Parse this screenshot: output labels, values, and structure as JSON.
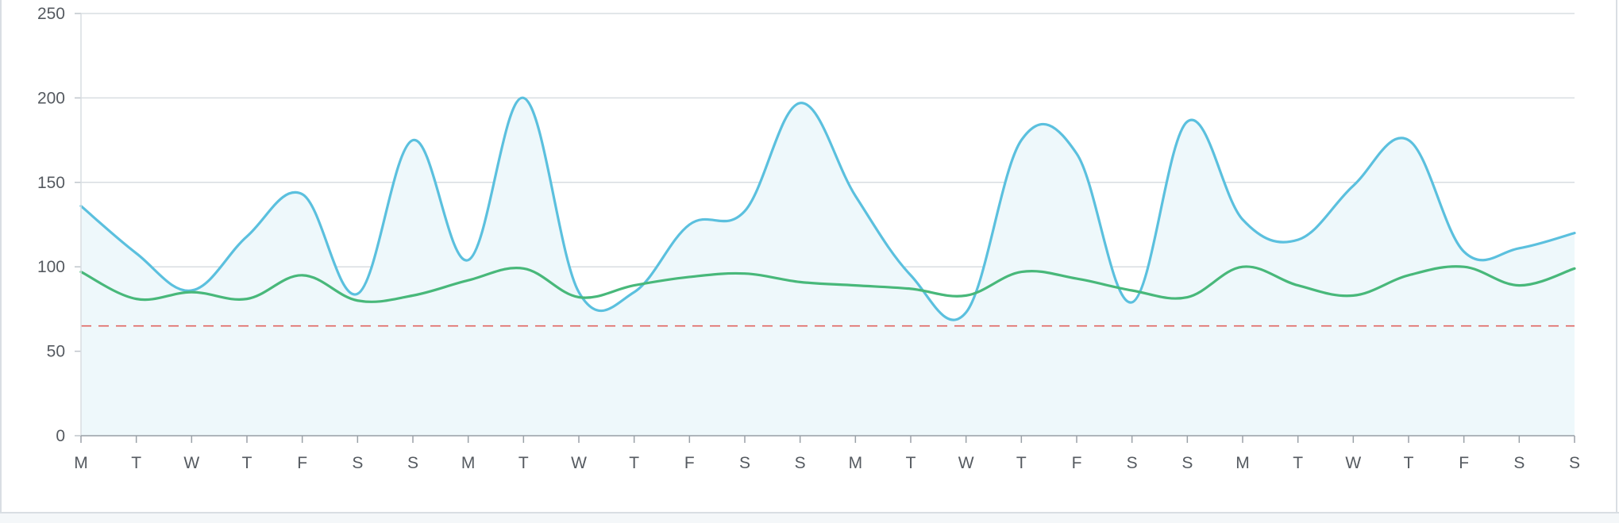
{
  "chart_data": {
    "type": "line",
    "title": "",
    "xlabel": "",
    "ylabel": "",
    "categories": [
      "M",
      "T",
      "W",
      "T",
      "F",
      "S",
      "S",
      "M",
      "T",
      "W",
      "T",
      "F",
      "S",
      "S",
      "M",
      "T",
      "W",
      "T",
      "F",
      "S",
      "S",
      "M",
      "T",
      "W",
      "T",
      "F",
      "S",
      "S"
    ],
    "ylim": [
      0,
      250
    ],
    "yticks": [
      0,
      50,
      100,
      150,
      200,
      250
    ],
    "grid": true,
    "legend": "none",
    "series": [
      {
        "values": [
          136,
          108,
          86,
          118,
          143,
          84,
          175,
          104,
          200,
          85,
          85,
          125,
          133,
          197,
          142,
          95,
          73,
          175,
          167,
          79,
          186,
          128,
          116,
          148,
          175,
          109,
          111,
          120
        ],
        "color": "#5bc0de",
        "fill": "#eef8fb"
      },
      {
        "values": [
          97,
          81,
          85,
          81,
          95,
          80,
          83,
          92,
          99,
          82,
          89,
          94,
          96,
          91,
          89,
          87,
          83,
          97,
          93,
          86,
          82,
          100,
          89,
          83,
          95,
          100,
          89,
          99
        ],
        "color": "#48b87a"
      }
    ],
    "threshold": {
      "value": 65,
      "color": "#e0635f",
      "style": "dashed"
    }
  }
}
